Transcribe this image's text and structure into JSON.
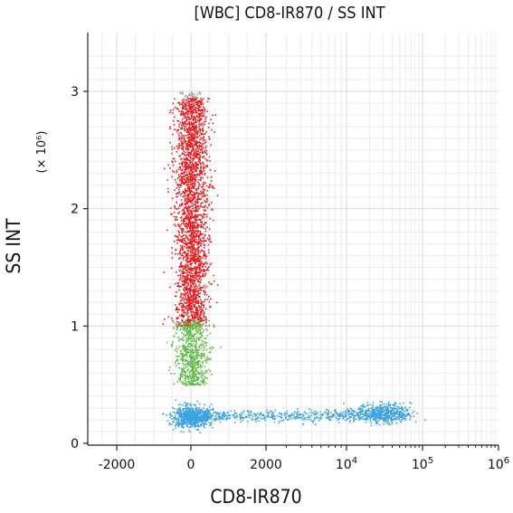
{
  "chart_data": {
    "type": "scatter",
    "title": "[WBC] CD8-IR870 / SS INT",
    "xlabel": "CD8-IR870",
    "ylabel": "SS INT",
    "y_multiplier_label": "(× 10⁶)",
    "x_scale": "biexponential (linear near 0, log above ~10^3.8)",
    "x_ticks": [
      {
        "value": -2000,
        "label": "-2000"
      },
      {
        "value": 0,
        "label": "0"
      },
      {
        "value": 2000,
        "label": "2000"
      },
      {
        "value": 10000,
        "label": "10^4"
      },
      {
        "value": 100000,
        "label": "10^5"
      },
      {
        "value": 1000000,
        "label": "10^6"
      }
    ],
    "y_ticks": [
      {
        "value": 0,
        "label": "0"
      },
      {
        "value": 1,
        "label": "1"
      },
      {
        "value": 2,
        "label": "2"
      },
      {
        "value": 3,
        "label": "3"
      }
    ],
    "ylim": [
      0,
      3.4
    ],
    "grid": true,
    "legend": "none",
    "populations": [
      {
        "color": "#e8191e",
        "x_center": 0,
        "y_range": [
          1.0,
          2.95
        ]
      },
      {
        "color": "#5dbb46",
        "x_center": 0,
        "y_range": [
          0.5,
          1.05
        ]
      },
      {
        "color": "#3da3e0",
        "x_center": 0,
        "y_center": 0.23
      },
      {
        "color": "#3da3e0",
        "x_center": 30000,
        "y_center": 0.26
      }
    ]
  }
}
